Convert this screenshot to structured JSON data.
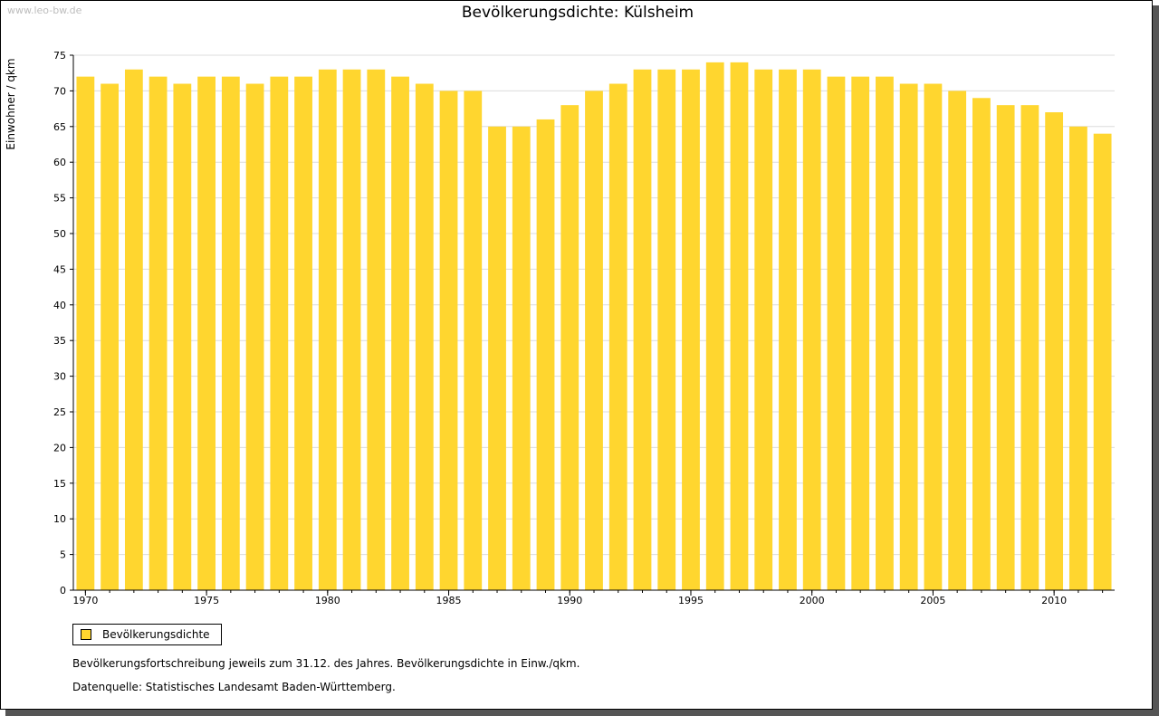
{
  "watermark": "www.leo-bw.de",
  "chart_data": {
    "type": "bar",
    "title": "Bevölkerungsdichte: Külsheim",
    "xlabel": "",
    "ylabel": "Einwohner / qkm",
    "ylim": [
      0,
      75
    ],
    "yticks": [
      0,
      5,
      10,
      15,
      20,
      25,
      30,
      35,
      40,
      45,
      50,
      55,
      60,
      65,
      70,
      75
    ],
    "xtick_labels": [
      "1970",
      "1975",
      "1980",
      "1985",
      "1990",
      "1995",
      "2000",
      "2005",
      "2010"
    ],
    "grid": true,
    "legend_position": "bottom-left",
    "categories": [
      1970,
      1971,
      1972,
      1973,
      1974,
      1975,
      1976,
      1977,
      1978,
      1979,
      1980,
      1981,
      1982,
      1983,
      1984,
      1985,
      1986,
      1987,
      1988,
      1989,
      1990,
      1991,
      1992,
      1993,
      1994,
      1995,
      1996,
      1997,
      1998,
      1999,
      2000,
      2001,
      2002,
      2003,
      2004,
      2005,
      2006,
      2007,
      2008,
      2009,
      2010,
      2011,
      2012
    ],
    "series": [
      {
        "name": "Bevölkerungsdichte",
        "color": "#FFD62F",
        "values": [
          72,
          71,
          73,
          72,
          71,
          72,
          72,
          71,
          72,
          72,
          73,
          73,
          73,
          72,
          71,
          70,
          70,
          65,
          65,
          66,
          68,
          70,
          71,
          73,
          73,
          73,
          74,
          74,
          73,
          73,
          73,
          72,
          72,
          72,
          71,
          71,
          70,
          69,
          68,
          68,
          67,
          65,
          64
        ]
      }
    ]
  },
  "notes": {
    "line1": "Bevölkerungsfortschreibung jeweils zum 31.12. des Jahres. Bevölkerungsdichte in Einw./qkm.",
    "line2": "Datenquelle: Statistisches Landesamt Baden-Württemberg."
  }
}
